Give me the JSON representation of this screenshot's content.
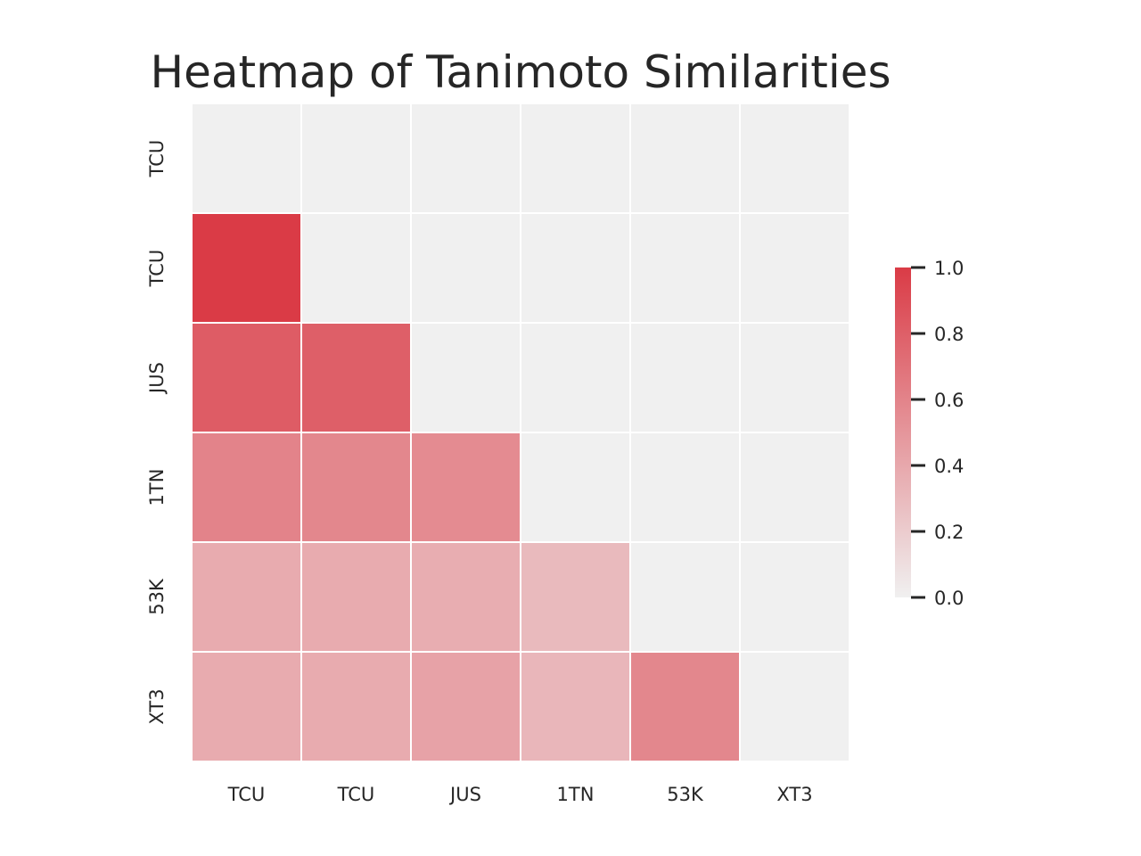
{
  "chart_data": {
    "type": "heatmap",
    "title": "Heatmap of Tanimoto Similarities",
    "xlabel": "",
    "ylabel": "",
    "x_labels": [
      "TCU",
      "TCU",
      "JUS",
      "1TN",
      "53K",
      "XT3"
    ],
    "y_labels": [
      "TCU",
      "TCU",
      "JUS",
      "1TN",
      "53K",
      "XT3"
    ],
    "mask": "upper-triangle-including-diagonal",
    "values": [
      [
        null,
        null,
        null,
        null,
        null,
        null
      ],
      [
        1.0,
        null,
        null,
        null,
        null,
        null
      ],
      [
        0.82,
        0.8,
        null,
        null,
        null,
        null
      ],
      [
        0.6,
        0.58,
        0.56,
        null,
        null,
        null
      ],
      [
        0.38,
        0.38,
        0.37,
        0.3,
        null,
        null
      ],
      [
        0.38,
        0.38,
        0.43,
        0.32,
        0.58,
        null
      ]
    ],
    "colorbar": {
      "min": 0.0,
      "max": 1.0,
      "ticks": [
        "0.0",
        "0.2",
        "0.4",
        "0.6",
        "0.8",
        "1.0"
      ],
      "colors": {
        "low": "#f0f0f0",
        "high": "#da3b46"
      }
    },
    "masked_color": "#f0f0f0",
    "grid_line_color": "#ffffff"
  }
}
